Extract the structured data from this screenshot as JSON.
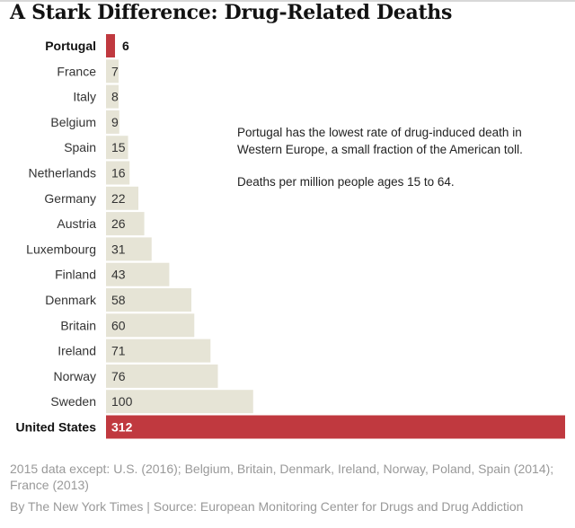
{
  "title": "A Stark Difference: Drug-Related Deaths",
  "note": {
    "line1": "Portugal has the lowest rate of drug-induced death in Western Europe, a small fraction of the American toll.",
    "line2": "Deaths per million people ages 15 to 64."
  },
  "footnote": "2015 data except: U.S. (2016); Belgium, Britain, Denmark, Ireland, Norway, Poland, Spain (2014); France (2013)",
  "credit": "By The New York Times | Source: European Monitoring Center for Drugs and Drug Addiction",
  "colors": {
    "highlight": "#c0393f",
    "default_bar": "#e6e4d6"
  },
  "chart_data": {
    "type": "bar",
    "orientation": "horizontal",
    "title": "A Stark Difference: Drug-Related Deaths",
    "xlabel": "",
    "ylabel": "",
    "unit": "Deaths per million people ages 15 to 64",
    "xlim": [
      0,
      312
    ],
    "grid": false,
    "legend": "none",
    "categories": [
      "Portugal",
      "France",
      "Italy",
      "Belgium",
      "Spain",
      "Netherlands",
      "Germany",
      "Austria",
      "Luxembourg",
      "Finland",
      "Denmark",
      "Britain",
      "Ireland",
      "Norway",
      "Sweden",
      "United States"
    ],
    "values": [
      6,
      7,
      8,
      9,
      15,
      16,
      22,
      26,
      31,
      43,
      58,
      60,
      71,
      76,
      100,
      312
    ],
    "highlighted": [
      "Portugal",
      "United States"
    ]
  }
}
